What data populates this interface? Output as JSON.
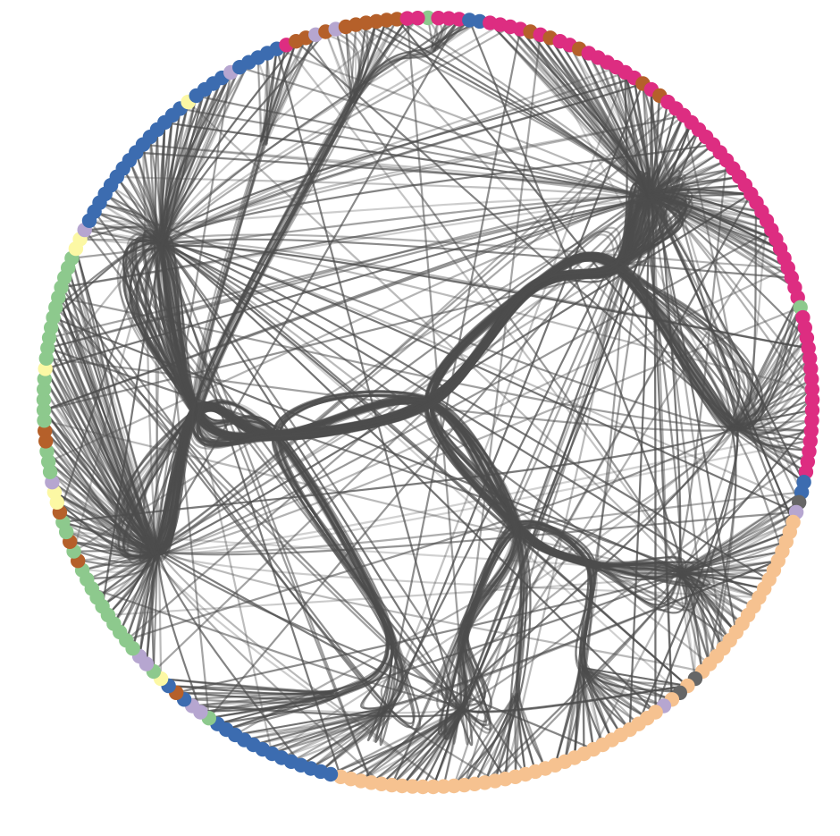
{
  "diagram": {
    "type": "hierarchical-edge-bundling",
    "edge_color": "#4d4d4d",
    "background": "#ffffff",
    "group_colors": {
      "green": "#8dc98d",
      "yellow": "#fcf8a4",
      "blue": "#3c6cb0",
      "lavender": "#b6a6d0",
      "brown": "#b5602a",
      "pink": "#dd2d81",
      "gray": "#666666",
      "peach": "#f6c290"
    },
    "node_groups": [
      "green",
      "pink",
      "pink",
      "pink",
      "blue",
      "blue",
      "pink",
      "pink",
      "pink",
      "pink",
      "brown",
      "pink",
      "brown",
      "pink",
      "pink",
      "brown",
      "pink",
      "pink",
      "pink",
      "pink",
      "pink",
      "pink",
      "brown",
      "pink",
      "brown",
      "pink",
      "pink",
      "pink",
      "pink",
      "pink",
      "pink",
      "pink",
      "pink",
      "pink",
      "pink",
      "pink",
      "pink",
      "pink",
      "pink",
      "pink",
      "pink",
      "pink",
      "pink",
      "pink",
      "pink",
      "pink",
      "pink",
      "pink",
      "pink",
      "green",
      "pink",
      "pink",
      "pink",
      "pink",
      "pink",
      "pink",
      "pink",
      "pink",
      "pink",
      "pink",
      "pink",
      "pink",
      "pink",
      "pink",
      "pink",
      "pink",
      "blue",
      "blue",
      "gray",
      "lavender",
      "peach",
      "peach",
      "peach",
      "peach",
      "peach",
      "peach",
      "peach",
      "peach",
      "peach",
      "peach",
      "peach",
      "peach",
      "peach",
      "peach",
      "peach",
      "peach",
      "peach",
      "peach",
      "gray",
      "peach",
      "gray",
      "peach",
      "lavender",
      "peach",
      "peach",
      "peach",
      "peach",
      "peach",
      "peach",
      "peach",
      "peach",
      "peach",
      "peach",
      "peach",
      "peach",
      "peach",
      "peach",
      "peach",
      "peach",
      "peach",
      "peach",
      "peach",
      "peach",
      "peach",
      "peach",
      "peach",
      "peach",
      "peach",
      "peach",
      "peach",
      "peach",
      "peach",
      "peach",
      "peach",
      "peach",
      "peach",
      "blue",
      "blue",
      "blue",
      "blue",
      "blue",
      "blue",
      "blue",
      "blue",
      "blue",
      "blue",
      "blue",
      "blue",
      "blue",
      "green",
      "lavender",
      "lavender",
      "blue",
      "brown",
      "blue",
      "yellow",
      "green",
      "lavender",
      "lavender",
      "green",
      "green",
      "green",
      "green",
      "green",
      "green",
      "green",
      "green",
      "green",
      "green",
      "brown",
      "green",
      "brown",
      "green",
      "green",
      "brown",
      "yellow",
      "yellow",
      "lavender",
      "green",
      "green",
      "green",
      "brown",
      "brown",
      "green",
      "green",
      "green",
      "green",
      "green",
      "yellow",
      "green",
      "green",
      "green",
      "green",
      "green",
      "green",
      "green",
      "green",
      "green",
      "green",
      "green",
      "yellow",
      "yellow",
      "lavender",
      "blue",
      "blue",
      "blue",
      "blue",
      "blue",
      "blue",
      "blue",
      "blue",
      "blue",
      "blue",
      "blue",
      "blue",
      "blue",
      "blue",
      "blue",
      "yellow",
      "blue",
      "blue",
      "blue",
      "blue",
      "lavender",
      "blue",
      "blue",
      "blue",
      "blue",
      "blue",
      "pink",
      "brown",
      "brown",
      "lavender",
      "brown",
      "lavender",
      "brown",
      "brown",
      "brown",
      "brown",
      "brown",
      "brown",
      "pink",
      "pink"
    ]
  }
}
